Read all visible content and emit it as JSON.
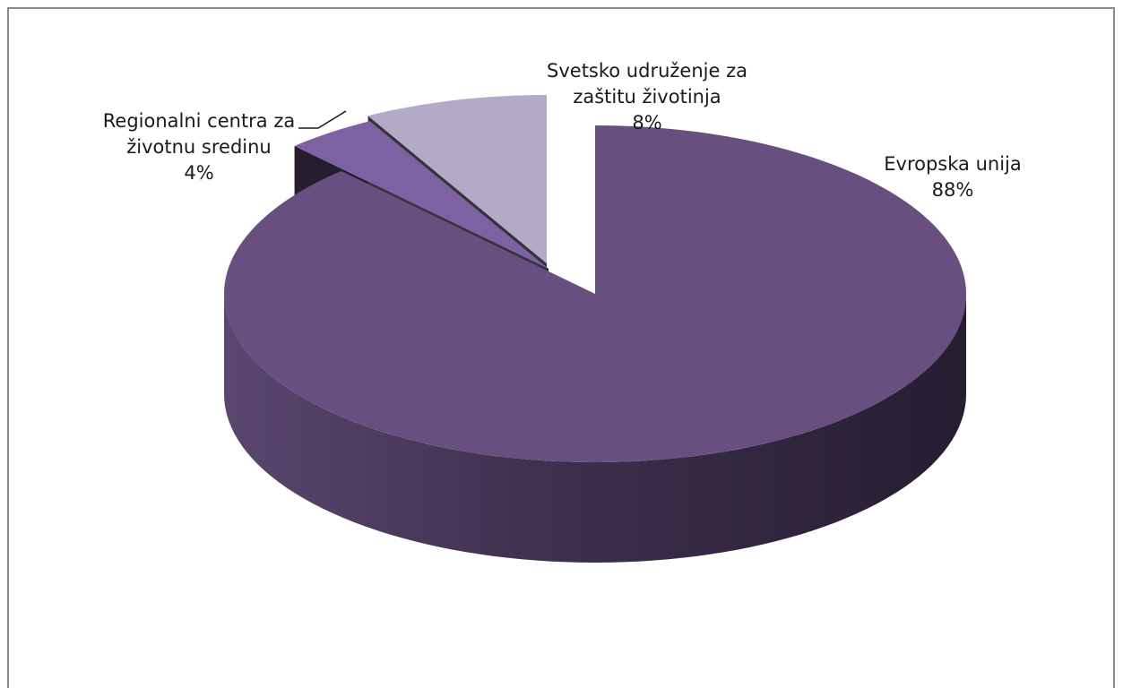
{
  "chart_data": {
    "type": "pie",
    "style": "3d-exploded",
    "title": "",
    "slices": [
      {
        "label_lines": [
          "Evropska unija"
        ],
        "value": 88,
        "value_label": "88%",
        "color": "#67507f"
      },
      {
        "label_lines": [
          "Regionalni centra za",
          "životnu sredinu"
        ],
        "value": 4,
        "value_label": "4%",
        "color": "#7d62a3"
      },
      {
        "label_lines": [
          "Svetsko udruženje za",
          "zaštitu životinja"
        ],
        "value": 8,
        "value_label": "8%",
        "color": "#b3aac7"
      }
    ],
    "legend": "none",
    "data_labels": "outside"
  }
}
